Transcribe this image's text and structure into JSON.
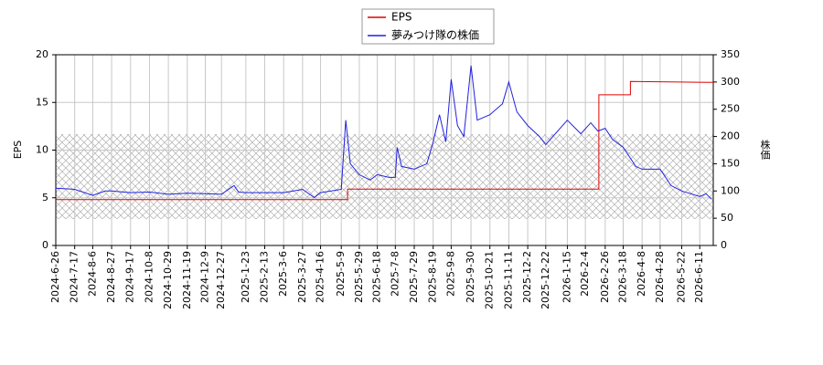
{
  "chart_data": {
    "type": "line",
    "xlim": [
      "2024-6-26",
      "2026-6-26"
    ],
    "xticks": [
      "2024-6-26",
      "2024-7-17",
      "2024-8-6",
      "2024-8-27",
      "2024-9-17",
      "2024-10-8",
      "2024-10-29",
      "2024-11-19",
      "2024-12-9",
      "2024-12-27",
      "2025-1-23",
      "2025-2-13",
      "2025-3-6",
      "2025-3-27",
      "2025-4-16",
      "2025-5-9",
      "2025-5-29",
      "2025-6-18",
      "2025-7-8",
      "2025-7-29",
      "2025-8-19",
      "2025-9-8",
      "2025-9-30",
      "2025-10-21",
      "2025-11-11",
      "2025-12-2",
      "2025-12-22",
      "2026-1-15",
      "2026-2-4",
      "2026-2-26",
      "2026-3-18",
      "2026-4-8",
      "2026-4-28",
      "2026-5-22",
      "2026-6-11"
    ],
    "ylabel": "EPS",
    "ylim": [
      0,
      20
    ],
    "yticks": [
      0,
      5,
      10,
      15,
      20
    ],
    "y2label": "株価",
    "y2lim": [
      0,
      350
    ],
    "y2ticks": [
      0,
      50,
      100,
      150,
      200,
      250,
      300,
      350
    ],
    "grid": true,
    "legend": "top",
    "series": [
      {
        "name": "EPS",
        "color": "#e00000",
        "x": [
          "2024-6-26",
          "2025-5-16",
          "2025-5-16",
          "2026-2-19",
          "2026-2-19",
          "2026-3-26",
          "2026-3-26",
          "2026-6-26"
        ],
        "values": [
          4.8,
          4.8,
          5.9,
          5.9,
          15.8,
          15.8,
          17.2,
          17.1
        ]
      },
      {
        "name": "夢みつけ隊の株価",
        "color": "#2020e0",
        "axis": "y2",
        "x": [
          "2024-6-26",
          "2024-7-17",
          "2024-8-6",
          "2024-8-20",
          "2024-8-27",
          "2024-9-17",
          "2024-10-8",
          "2024-10-29",
          "2024-11-19",
          "2024-12-9",
          "2024-12-27",
          "2025-1-10",
          "2025-1-15",
          "2025-1-23",
          "2025-2-13",
          "2025-3-6",
          "2025-3-27",
          "2025-4-9",
          "2025-4-16",
          "2025-5-9",
          "2025-5-14",
          "2025-5-19",
          "2025-5-29",
          "2025-6-10",
          "2025-6-18",
          "2025-7-1",
          "2025-7-8",
          "2025-7-10",
          "2025-7-15",
          "2025-7-29",
          "2025-8-12",
          "2025-8-19",
          "2025-8-26",
          "2025-9-2",
          "2025-9-8",
          "2025-9-15",
          "2025-9-22",
          "2025-9-30",
          "2025-10-7",
          "2025-10-21",
          "2025-11-4",
          "2025-11-11",
          "2025-11-20",
          "2025-12-2",
          "2025-12-15",
          "2025-12-22",
          "2026-1-15",
          "2026-1-30",
          "2026-2-10",
          "2026-2-18",
          "2026-2-26",
          "2026-3-6",
          "2026-3-18",
          "2026-4-1",
          "2026-4-8",
          "2026-4-28",
          "2026-5-10",
          "2026-5-22",
          "2026-6-11",
          "2026-6-18",
          "2026-6-24"
        ],
        "values": [
          105,
          103,
          92,
          100,
          100,
          97,
          98,
          94,
          96,
          95,
          94,
          110,
          98,
          97,
          97,
          97,
          103,
          88,
          97,
          103,
          230,
          150,
          130,
          120,
          130,
          125,
          125,
          180,
          145,
          140,
          150,
          190,
          240,
          190,
          305,
          220,
          200,
          330,
          230,
          240,
          260,
          300,
          245,
          220,
          200,
          185,
          230,
          205,
          225,
          210,
          215,
          195,
          180,
          145,
          140,
          140,
          110,
          100,
          90,
          95,
          85
        ]
      }
    ]
  }
}
